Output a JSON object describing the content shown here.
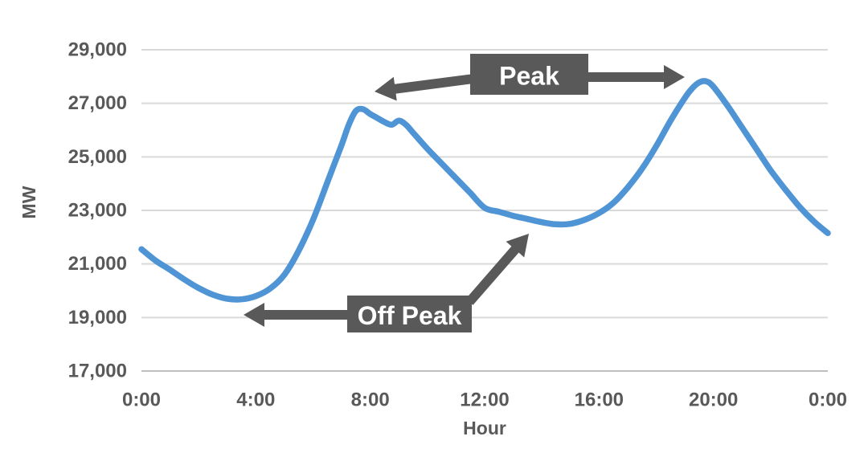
{
  "chart_data": {
    "type": "line",
    "title": "",
    "xlabel": "Hour",
    "ylabel": "MW",
    "x_ticks": [
      "0:00",
      "4:00",
      "8:00",
      "12:00",
      "16:00",
      "20:00",
      "0:00"
    ],
    "x_tick_hours": [
      0,
      4,
      8,
      12,
      16,
      20,
      24
    ],
    "y_ticks": [
      "29,000",
      "27,000",
      "25,000",
      "23,000",
      "21,000",
      "19,000",
      "17,000"
    ],
    "y_tick_values": [
      29000,
      27000,
      25000,
      23000,
      21000,
      19000,
      17000
    ],
    "ylim": [
      17000,
      29000
    ],
    "xlim_hours": [
      0,
      24
    ],
    "grid": "horizontal",
    "legend": "none",
    "series": [
      {
        "color": "#4f94d4",
        "x": [
          0,
          0.5,
          1,
          1.5,
          2,
          2.5,
          3,
          3.5,
          4,
          4.5,
          5,
          5.5,
          6,
          6.5,
          7,
          7.25,
          7.5,
          7.75,
          8,
          8.25,
          8.5,
          8.75,
          9,
          9.25,
          9.5,
          10,
          10.5,
          11,
          11.5,
          12,
          12.5,
          13,
          13.5,
          14,
          14.5,
          15,
          15.5,
          16,
          16.5,
          17,
          17.5,
          18,
          18.5,
          19,
          19.25,
          19.5,
          19.75,
          20,
          20.5,
          21,
          21.5,
          22,
          22.5,
          23,
          23.5,
          24
        ],
        "y": [
          21550,
          21120,
          20780,
          20420,
          20100,
          19850,
          19700,
          19680,
          19800,
          20080,
          20600,
          21500,
          22650,
          24050,
          25450,
          26200,
          26720,
          26780,
          26600,
          26450,
          26300,
          26200,
          26350,
          26200,
          25900,
          25300,
          24750,
          24200,
          23650,
          23100,
          22950,
          22800,
          22680,
          22560,
          22480,
          22500,
          22650,
          22900,
          23280,
          23850,
          24550,
          25400,
          26350,
          27200,
          27550,
          27780,
          27820,
          27620,
          26900,
          26100,
          25300,
          24500,
          23800,
          23150,
          22600,
          22150
        ]
      }
    ],
    "annotations": [
      {
        "label": "Peak",
        "box_color": "#595959",
        "text_color": "#ffffff",
        "points_to": [
          "morning-peak",
          "evening-peak"
        ]
      },
      {
        "label": "Off Peak",
        "box_color": "#595959",
        "text_color": "#ffffff",
        "points_to": [
          "overnight-trough",
          "midday-trough"
        ]
      }
    ]
  },
  "colors": {
    "line": "#4f94d4",
    "gridline": "#d9d9d9",
    "axis_line": "#bfbfbf",
    "label_text": "#595959",
    "annotation_box": "#595959",
    "annotation_text": "#ffffff",
    "background": "#ffffff"
  }
}
